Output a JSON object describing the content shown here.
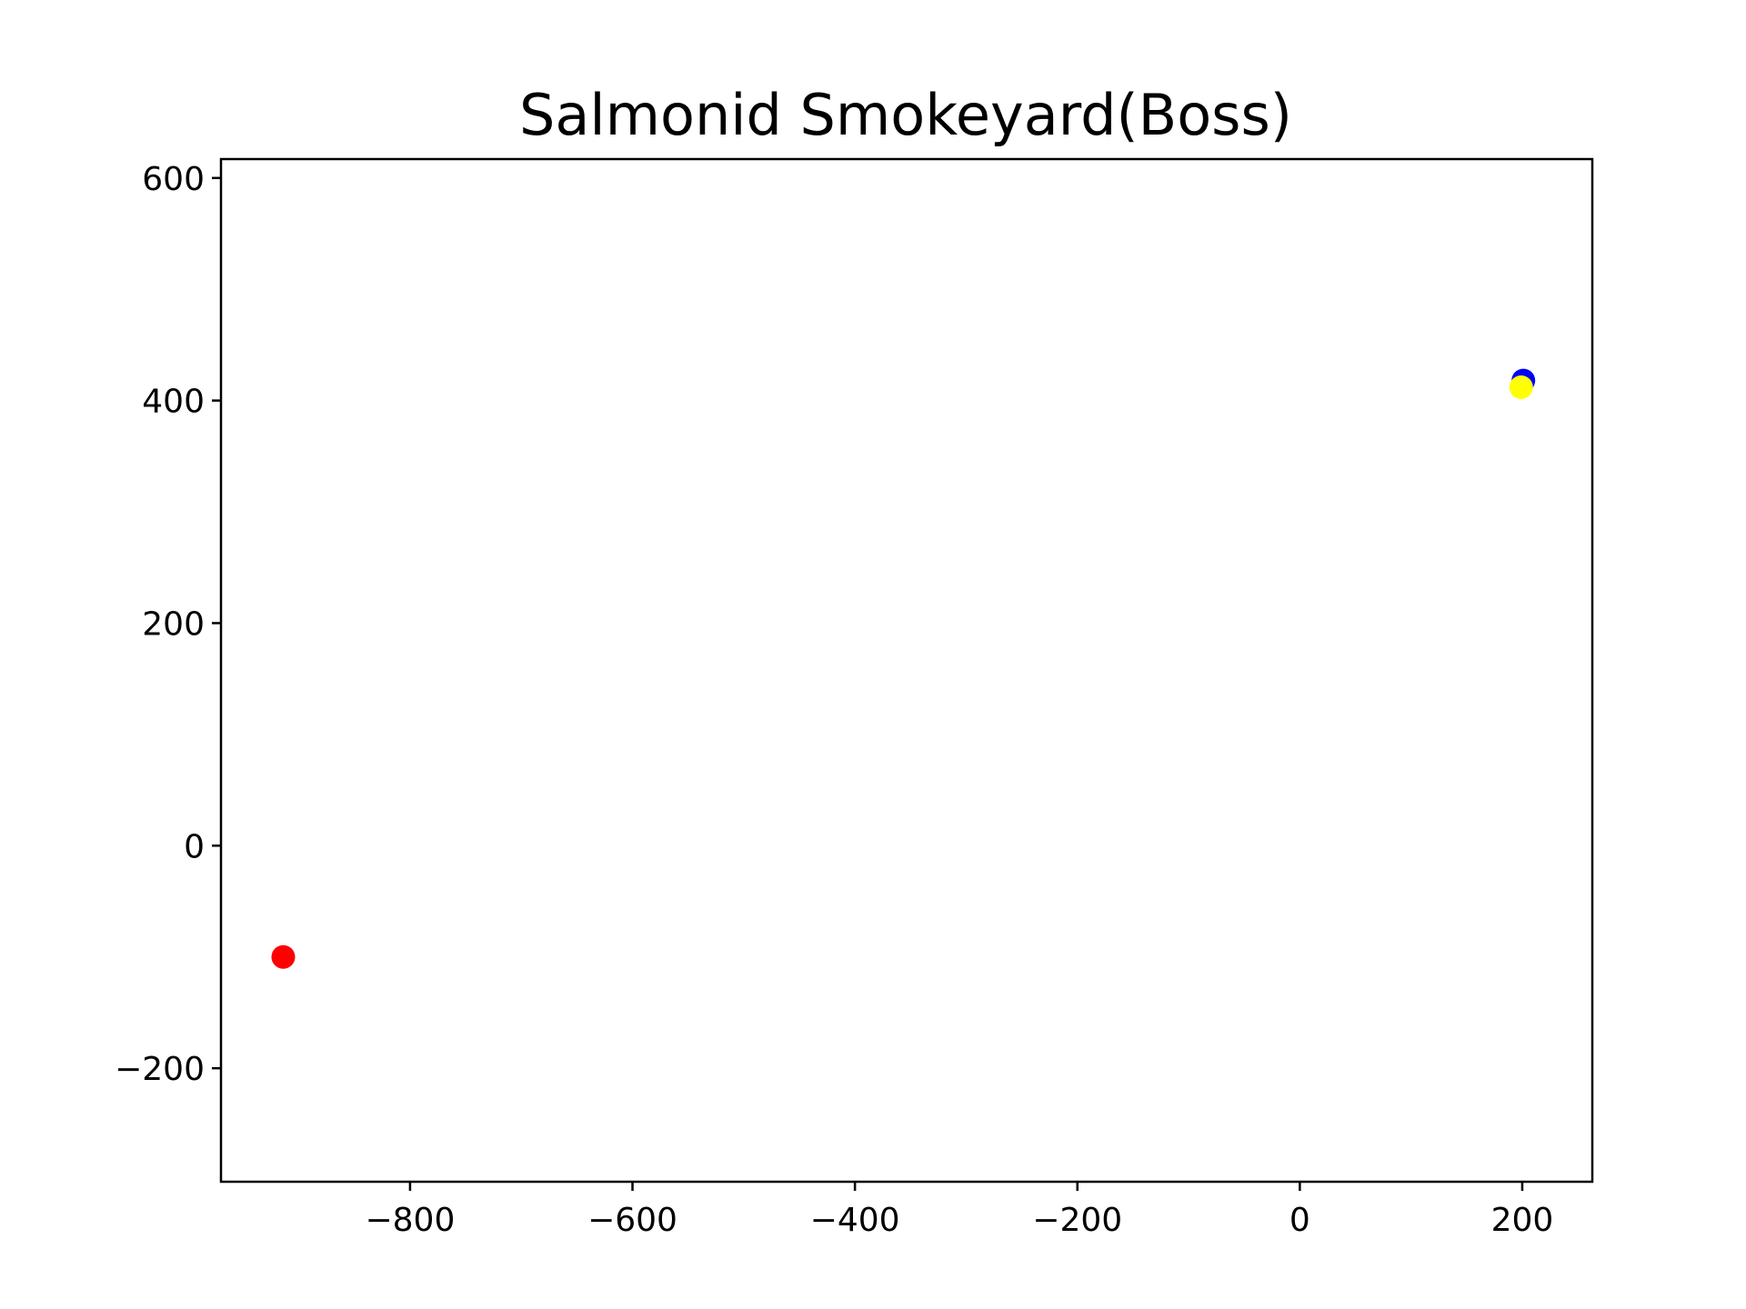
{
  "chart_data": {
    "type": "scatter",
    "title": "Salmonid Smokeyard(Boss)",
    "xlabel": "",
    "ylabel": "",
    "xlim": [
      -970,
      263
    ],
    "ylim": [
      -302,
      617
    ],
    "xticks": [
      -800,
      -600,
      -400,
      -200,
      0,
      200
    ],
    "xtick_labels": [
      "−800",
      "−600",
      "−400",
      "−200",
      "0",
      "200"
    ],
    "yticks": [
      -200,
      0,
      200,
      400,
      600
    ],
    "ytick_labels": [
      "−200",
      "0",
      "200",
      "400",
      "600"
    ],
    "grid": false,
    "legend": false,
    "points": [
      {
        "x": 201,
        "y": 418,
        "color": "#0000ff"
      },
      {
        "x": 199,
        "y": 412,
        "color": "#ffff00"
      },
      {
        "x": -914,
        "y": -100,
        "color": "#ff0000"
      }
    ]
  }
}
